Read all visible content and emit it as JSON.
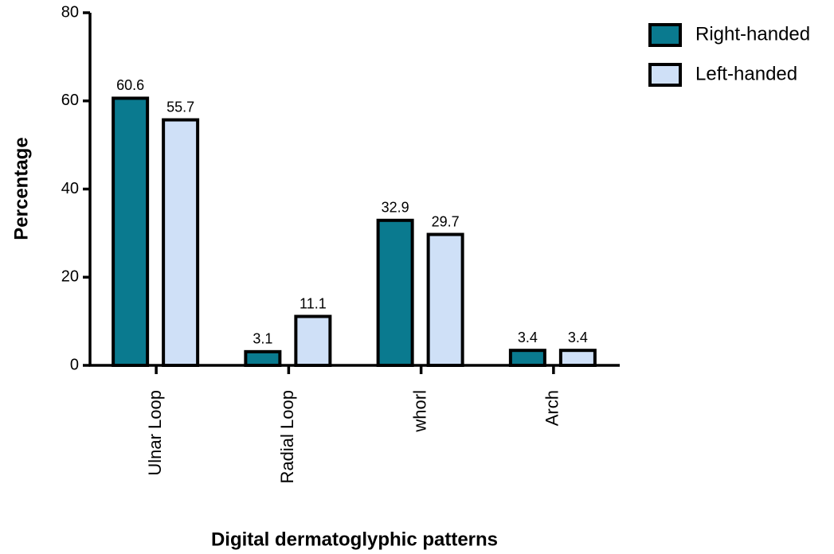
{
  "chart_data": {
    "type": "bar",
    "x_label": "Digital dermatoglyphic patterns",
    "y_label": "Percentage",
    "categories": [
      "Ulnar Loop",
      "Radial Loop",
      "whorl",
      "Arch"
    ],
    "series": [
      {
        "name": "Right-handed",
        "color": "#0a7a8f",
        "values": [
          60.6,
          3.1,
          32.9,
          3.4
        ]
      },
      {
        "name": "Left-handed",
        "color": "#cfe0f7",
        "values": [
          55.7,
          11.1,
          29.7,
          3.4
        ]
      }
    ],
    "ylim": [
      0,
      80
    ],
    "yticks": [
      0,
      20,
      40,
      60,
      80
    ],
    "legend": "top-right"
  }
}
